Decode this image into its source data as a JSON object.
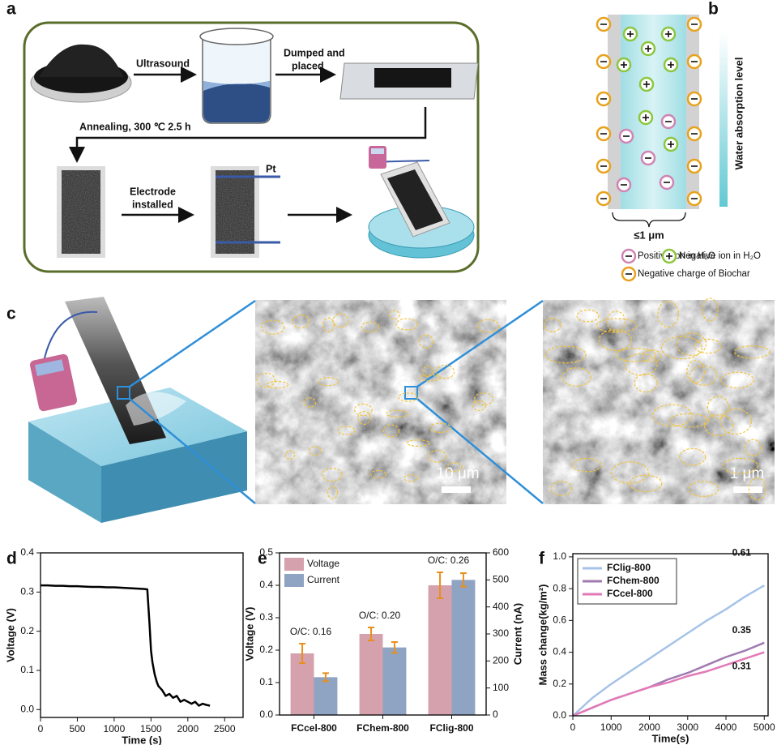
{
  "panel_a": {
    "label": "a",
    "ultrasound": "Ultrasound",
    "dumped": [
      "Dumped and",
      "placed"
    ],
    "annealing": "Annealing, 300 ℃ 2.5 h",
    "electrode": [
      "Electrode",
      "installed"
    ],
    "pt": "Pt"
  },
  "panel_b": {
    "label": "b",
    "gradient_label": "Water absorption level",
    "width_label": "≤1 μm",
    "legend": [
      "Positive ion in H₂O",
      "Negative ion in H₂O",
      "Negative charge of Biochar"
    ]
  },
  "panel_c": {
    "label": "c",
    "scale_bars": [
      "10 μm",
      "1 μm"
    ]
  },
  "chart_data": [
    {
      "type": "line",
      "panel_label": "d",
      "x_label": "Time (s)",
      "y_label": "Voltage (V)",
      "color": "#000000",
      "x": [
        0,
        100,
        200,
        300,
        400,
        500,
        600,
        700,
        800,
        900,
        1000,
        1100,
        1200,
        1300,
        1400,
        1450,
        1480,
        1500,
        1520,
        1550,
        1580,
        1600,
        1650,
        1700,
        1750,
        1800,
        1850,
        1900,
        1950,
        2000,
        2050,
        2100,
        2150,
        2200,
        2250,
        2300
      ],
      "values": [
        0.317,
        0.317,
        0.316,
        0.316,
        0.315,
        0.315,
        0.314,
        0.313,
        0.313,
        0.312,
        0.312,
        0.311,
        0.31,
        0.309,
        0.308,
        0.307,
        0.22,
        0.15,
        0.12,
        0.09,
        0.07,
        0.06,
        0.05,
        0.035,
        0.04,
        0.03,
        0.035,
        0.02,
        0.025,
        0.02,
        0.015,
        0.02,
        0.01,
        0.015,
        0.012,
        0.01
      ],
      "xlim": [
        0,
        2750
      ],
      "xticks": [
        0,
        500,
        1000,
        1500,
        2000,
        2500
      ],
      "ylim": [
        -0.02,
        0.4
      ],
      "yticks": [
        {
          "value": 0,
          "label": "0.0"
        },
        0.1,
        0.2,
        0.3,
        0.4
      ]
    },
    {
      "type": "bar",
      "panel_label": "e",
      "y_label": "Voltage (V)",
      "y2_label": "Current (nA)",
      "categories": [
        "FCcel-800",
        "FChem-800",
        "FClig-800"
      ],
      "annotations": [
        "O/C: 0.16",
        "O/C: 0.20",
        "O/C: 0.26"
      ],
      "error_color": "#e8901c",
      "series": [
        {
          "name": "Voltage",
          "color": "#d4a1ad",
          "values": [
            0.19,
            0.25,
            0.4
          ],
          "errors": [
            0.03,
            0.02,
            0.04
          ]
        },
        {
          "name": "Current",
          "color": "#8fa3c2",
          "axis": "y2",
          "values": [
            140,
            250,
            500
          ],
          "errors": [
            15,
            20,
            25
          ]
        }
      ],
      "ylim": [
        0,
        0.5
      ],
      "yticks": [
        {
          "value": 0,
          "label": "0.0"
        },
        0.1,
        0.2,
        0.3,
        0.4,
        0.5
      ],
      "y2lim": [
        0,
        600
      ],
      "y2ticks": [
        0,
        100,
        200,
        300,
        400,
        500,
        600
      ]
    },
    {
      "type": "line",
      "panel_label": "f",
      "x_label": "Time(s)",
      "y_label": "Mass change(kg/m²)",
      "x": [
        0,
        500,
        1000,
        1500,
        2000,
        2500,
        3000,
        3500,
        4000,
        4500,
        5000
      ],
      "series": [
        {
          "name": "FClig-800",
          "color": "#a6c3e8",
          "values": [
            0,
            0.11,
            0.2,
            0.28,
            0.36,
            0.44,
            0.52,
            0.6,
            0.67,
            0.75,
            0.82
          ]
        },
        {
          "name": "FChem-800",
          "color": "#a07bb0",
          "values": [
            0,
            0.05,
            0.1,
            0.14,
            0.18,
            0.23,
            0.27,
            0.32,
            0.37,
            0.41,
            0.46
          ]
        },
        {
          "name": "FCcel-800",
          "color": "#e27ab8",
          "values": [
            0,
            0.05,
            0.1,
            0.14,
            0.18,
            0.21,
            0.25,
            0.28,
            0.32,
            0.36,
            0.4
          ]
        }
      ],
      "annotations": [
        "0.61",
        "0.35",
        "0.31"
      ],
      "legend": "upper left",
      "xlim": [
        0,
        5100
      ],
      "xticks": [
        0,
        1000,
        2000,
        3000,
        4000,
        5000
      ],
      "ylim": [
        0,
        1.02
      ],
      "yticks": [
        {
          "value": 0,
          "label": "0.0"
        },
        0.2,
        0.4,
        0.6,
        0.8,
        {
          "value": 1,
          "label": "1.0"
        }
      ]
    }
  ]
}
